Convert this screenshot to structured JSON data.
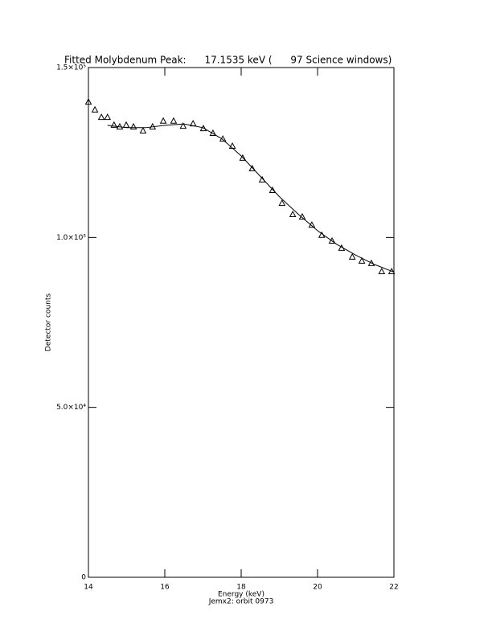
{
  "chart_data": {
    "type": "line",
    "title": "Fitted Molybdenum Peak:      17.1535 keV (      97 Science windows)",
    "x_label": "Energy (keV)",
    "subtitle": "Jemx2: orbit 0973",
    "y_label": "Detector counts",
    "xlim": [
      14,
      22
    ],
    "xticks": [
      14,
      16,
      18,
      20,
      22
    ],
    "ylim": [
      0,
      150000
    ],
    "yticks": [
      0,
      {
        "value": 50000,
        "label": "5.0×10⁴"
      },
      {
        "value": 100000,
        "label": "1.0×10⁵"
      },
      {
        "value": 150000,
        "label": "1.5×10⁵"
      }
    ],
    "series": [
      {
        "marker": "triangle",
        "color": "#000000",
        "x": [
          14.0,
          14.17,
          14.34,
          14.5,
          14.67,
          14.82,
          14.99,
          15.18,
          15.43,
          15.68,
          15.96,
          16.23,
          16.48,
          16.74,
          17.01,
          17.26,
          17.52,
          17.77,
          18.04,
          18.29,
          18.55,
          18.82,
          19.07,
          19.35,
          19.6,
          19.85,
          20.11,
          20.38,
          20.63,
          20.91,
          21.16,
          21.41,
          21.68,
          21.94
        ],
        "values": [
          139800,
          137500,
          135300,
          135300,
          133000,
          132500,
          133000,
          132500,
          131300,
          132500,
          134200,
          134200,
          132700,
          133400,
          132000,
          130600,
          128900,
          126800,
          123300,
          120200,
          116900,
          113800,
          110000,
          106700,
          106000,
          103600,
          100600,
          98900,
          96800,
          94200,
          93000,
          92300,
          89900,
          89900
        ]
      },
      {
        "marker": "none",
        "color": "#000000",
        "x": [
          14.5,
          15,
          15.5,
          16,
          16.5,
          17,
          17.5,
          18,
          18.5,
          19,
          19.5,
          20,
          20.5,
          21,
          21.5,
          22
        ],
        "values": [
          133000,
          132300,
          132300,
          133000,
          133400,
          132300,
          129000,
          124000,
          118000,
          112000,
          106800,
          102000,
          98000,
          94800,
          92000,
          89800
        ]
      }
    ]
  }
}
